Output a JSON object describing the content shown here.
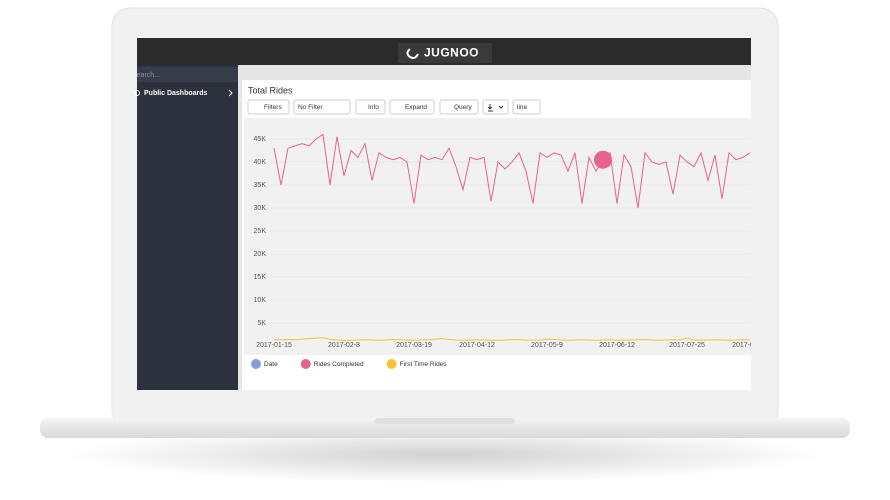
{
  "header": {
    "logo": "JUGNOO"
  },
  "sidebar": {
    "search_placeholder": "Search...",
    "items": [
      "Public Dashboards"
    ]
  },
  "toolbar": {
    "filters": "Filters",
    "filter_select": "No Filter",
    "info": "Info",
    "expand": "Expand",
    "query": "Query",
    "viz_select": "line"
  },
  "chart_data": {
    "type": "line",
    "title": "Total Rides",
    "categories": [
      "2017-01-15",
      null,
      null,
      null,
      null,
      null,
      null,
      null,
      null,
      null,
      "2017-02-8",
      null,
      null,
      null,
      null,
      null,
      null,
      null,
      null,
      null,
      "2017-03-19",
      null,
      null,
      null,
      null,
      null,
      null,
      null,
      null,
      "2017-04-12",
      null,
      null,
      null,
      null,
      null,
      null,
      null,
      null,
      null,
      "2017-05-9",
      null,
      null,
      null,
      null,
      null,
      null,
      null,
      null,
      null,
      "2017-06-12",
      null,
      null,
      null,
      null,
      null,
      null,
      null,
      null,
      null,
      "2017-07-25",
      null,
      null,
      null,
      null,
      null,
      null,
      null,
      "2017-0",
      null
    ],
    "series": [
      {
        "name": "Date",
        "color": "#8c9be0",
        "values": [
          null,
          null,
          null,
          null,
          null,
          null,
          null,
          null,
          null,
          null,
          null,
          null,
          null,
          null,
          null,
          null,
          null,
          null,
          null,
          null,
          null,
          null,
          null,
          null,
          null,
          null,
          null,
          null,
          null,
          null,
          null,
          null,
          null,
          null,
          null,
          null,
          null,
          null,
          null,
          null,
          null,
          null,
          null,
          null,
          null,
          null,
          null,
          null,
          null,
          null,
          null,
          null,
          null,
          null,
          null,
          null,
          null,
          null,
          null,
          null,
          null,
          null,
          null,
          null,
          null,
          null,
          null,
          null,
          null
        ]
      },
      {
        "name": "Rides Completed",
        "color": "#e8628e",
        "values": [
          43000,
          35000,
          43000,
          43500,
          44000,
          43500,
          45000,
          46000,
          35000,
          45500,
          37000,
          42500,
          41000,
          44000,
          36000,
          42000,
          41000,
          40500,
          41000,
          40000,
          31000,
          41500,
          40500,
          41000,
          40500,
          43000,
          39000,
          34000,
          41000,
          40500,
          41000,
          31500,
          40000,
          38500,
          40000,
          42000,
          38000,
          31000,
          42000,
          41000,
          42000,
          41500,
          38000,
          42000,
          31000,
          41000,
          38000,
          40500,
          42000,
          31000,
          41500,
          39000,
          30000,
          42000,
          40000,
          39500,
          40000,
          33000,
          41500,
          40000,
          39000,
          42000,
          36000,
          41500,
          32000,
          42000,
          40500,
          41000,
          42000
        ]
      },
      {
        "name": "First Time Rides",
        "color": "#f5c23a",
        "values": [
          1300,
          1350,
          1400,
          1350,
          1500,
          1600,
          1700,
          1800,
          1500,
          1300,
          1200,
          1250,
          1300,
          1350,
          1300,
          1250,
          1300,
          1400,
          1350,
          1300,
          1250,
          1300,
          1350,
          1500,
          1600,
          1400,
          1300,
          1250,
          1300,
          1350,
          1300,
          1250,
          1200,
          1300,
          1350,
          1400,
          1300,
          1250,
          1300,
          1500,
          1400,
          1300,
          1250,
          1300,
          1350,
          1300,
          1250,
          1300,
          1350,
          1300,
          1250,
          1300,
          1350,
          1400,
          1300,
          1250,
          1300,
          1350,
          1300,
          1700,
          1300,
          1250,
          1300,
          1350,
          1300,
          1250,
          1300,
          1350,
          1300
        ]
      }
    ],
    "highlight_index": 47,
    "ylim": [
      0,
      50000
    ],
    "yticks": [
      {
        "value": 5000,
        "label": "5K"
      },
      {
        "value": 10000,
        "label": "10K"
      },
      {
        "value": 15000,
        "label": "15K"
      },
      {
        "value": 20000,
        "label": "20K"
      },
      {
        "value": 25000,
        "label": "25K"
      },
      {
        "value": 30000,
        "label": "30K"
      },
      {
        "value": 35000,
        "label": "35K"
      },
      {
        "value": 40000,
        "label": "40K"
      },
      {
        "value": 45000,
        "label": "45K"
      }
    ],
    "grid": true
  }
}
